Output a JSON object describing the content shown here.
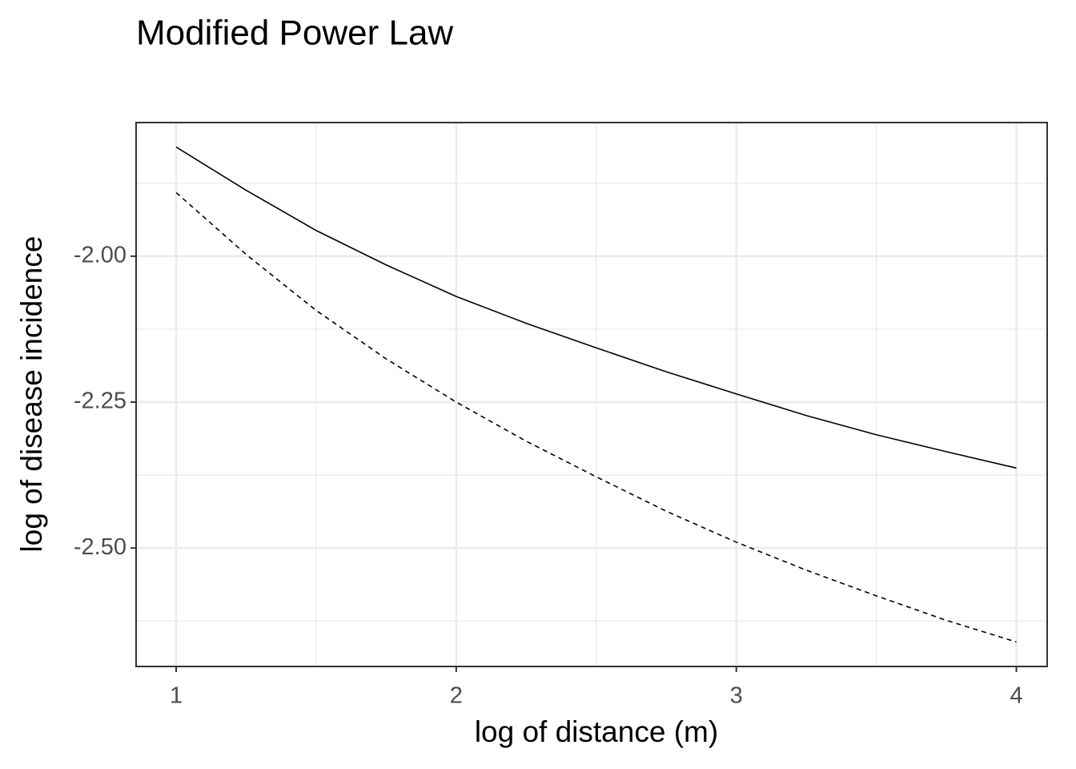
{
  "chart_data": {
    "type": "line",
    "title": "Modified Power Law",
    "x_label": "log of distance (m)",
    "y_label": "log of disease incidence",
    "x": [
      1,
      1.25,
      1.5,
      1.75,
      2,
      2.25,
      2.5,
      2.75,
      3,
      3.25,
      3.5,
      3.75,
      4
    ],
    "series": [
      {
        "color": "#000000",
        "dash": "solid",
        "values": [
          -1.813,
          -1.887,
          -1.956,
          -2.015,
          -2.069,
          -2.115,
          -2.157,
          -2.198,
          -2.236,
          -2.273,
          -2.306,
          -2.335,
          -2.363
        ]
      },
      {
        "color": "#000000",
        "dash": "dashed",
        "values": [
          -1.891,
          -1.997,
          -2.093,
          -2.176,
          -2.25,
          -2.317,
          -2.378,
          -2.437,
          -2.49,
          -2.538,
          -2.582,
          -2.624,
          -2.661
        ]
      }
    ],
    "xlim": [
      0.857,
      4.11
    ],
    "ylim": [
      -2.703,
      -1.771
    ],
    "xticks": [
      1,
      2,
      3,
      4
    ],
    "yticks": [
      {
        "value": -2.5,
        "label": "-2.50"
      },
      {
        "value": -2.25,
        "label": "-2.25"
      },
      {
        "value": -2,
        "label": "-2.00"
      }
    ],
    "x_minor_grid": [
      1.5,
      2.5,
      3.5
    ],
    "y_minor_grid": [
      -2.625,
      -2.375,
      -2.125,
      -1.875
    ],
    "grid": true
  }
}
